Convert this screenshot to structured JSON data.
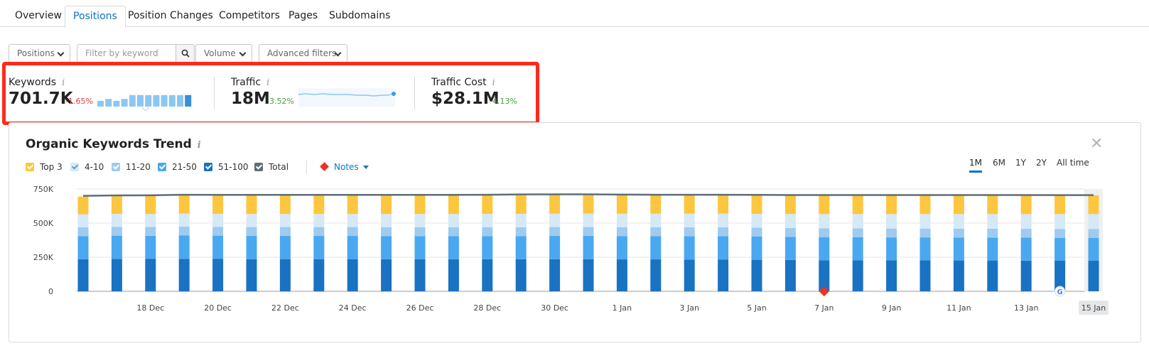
{
  "tabs": [
    {
      "label": "Overview"
    },
    {
      "label": "Positions"
    },
    {
      "label": "Position Changes"
    },
    {
      "label": "Competitors"
    },
    {
      "label": "Pages"
    },
    {
      "label": "Subdomains"
    }
  ],
  "filters": {
    "positions_label": "Positions",
    "keyword_placeholder": "Filter by keyword",
    "volume_label": "Volume",
    "advanced_label": "Advanced filters"
  },
  "metrics": {
    "keywords": {
      "label": "Keywords",
      "value": "701.7K",
      "change": "-1.65%",
      "trend_bars": [
        0.3,
        0.4,
        0.3,
        0.4,
        0.6,
        0.6,
        0.6,
        0.6,
        0.6,
        0.6,
        0.6,
        0.6
      ]
    },
    "traffic": {
      "label": "Traffic",
      "value": "18M",
      "change": "3.52%"
    },
    "traffic_cost": {
      "label": "Traffic Cost",
      "value": "$28.1M",
      "change": "4.13%"
    }
  },
  "panel": {
    "title": "Organic Keywords Trend",
    "legend": [
      {
        "label": "Top 3",
        "color": "#fdc63f"
      },
      {
        "label": "4-10",
        "color": "#d5e9f7"
      },
      {
        "label": "11-20",
        "color": "#9ecbef"
      },
      {
        "label": "21-50",
        "color": "#4aa8f0"
      },
      {
        "label": "51-100",
        "color": "#1a72c2"
      },
      {
        "label": "Total",
        "color": "#5d6e76"
      }
    ],
    "notes_label": "Notes",
    "ranges": [
      "1M",
      "6M",
      "1Y",
      "2Y",
      "All time"
    ],
    "active_range": "1M"
  },
  "chart_data": {
    "type": "bar",
    "stacked": true,
    "yticks": [
      "750K",
      "500K",
      "250K",
      "0"
    ],
    "ylim": [
      0,
      750000
    ],
    "x_tick_labels": [
      "18 Dec",
      "20 Dec",
      "22 Dec",
      "24 Dec",
      "26 Dec",
      "28 Dec",
      "30 Dec",
      "1 Jan",
      "3 Jan",
      "5 Jan",
      "7 Jan",
      "9 Jan",
      "11 Jan",
      "13 Jan",
      "15 Jan"
    ],
    "categories": [
      "16 Dec",
      "17 Dec",
      "18 Dec",
      "19 Dec",
      "20 Dec",
      "21 Dec",
      "22 Dec",
      "23 Dec",
      "24 Dec",
      "25 Dec",
      "26 Dec",
      "27 Dec",
      "28 Dec",
      "29 Dec",
      "30 Dec",
      "31 Dec",
      "1 Jan",
      "2 Jan",
      "3 Jan",
      "4 Jan",
      "5 Jan",
      "6 Jan",
      "7 Jan",
      "8 Jan",
      "9 Jan",
      "10 Jan",
      "11 Jan",
      "12 Jan",
      "13 Jan",
      "14 Jan",
      "15 Jan"
    ],
    "series": [
      {
        "name": "51-100",
        "values": [
          235000,
          238000,
          237000,
          238000,
          237000,
          236000,
          236000,
          236000,
          236000,
          235000,
          235000,
          235000,
          235000,
          235000,
          235000,
          235000,
          234000,
          234000,
          233000,
          232000,
          231000,
          230000,
          228000,
          228000,
          227000,
          227000,
          226000,
          226000,
          225000,
          224000,
          224000
        ]
      },
      {
        "name": "21-50",
        "values": [
          170000,
          170000,
          170000,
          172000,
          171000,
          170000,
          170000,
          170000,
          170000,
          170000,
          170000,
          170000,
          170000,
          170000,
          171000,
          171000,
          171000,
          171000,
          171000,
          172000,
          170000,
          169000,
          168000,
          168000,
          168000,
          168000,
          168000,
          168000,
          168000,
          168000,
          168000
        ]
      },
      {
        "name": "11-20",
        "values": [
          65000,
          65000,
          65000,
          65000,
          65000,
          65000,
          65000,
          65000,
          65000,
          65000,
          65000,
          65000,
          65000,
          65000,
          65000,
          65000,
          65000,
          65000,
          65000,
          65000,
          65000,
          65000,
          65000,
          65000,
          65000,
          65000,
          65000,
          65000,
          65000,
          65000,
          65000
        ]
      },
      {
        "name": "4-10",
        "values": [
          95000,
          95000,
          95000,
          95000,
          95000,
          96000,
          96000,
          96000,
          96000,
          97000,
          97000,
          97000,
          98000,
          98000,
          98000,
          98000,
          99000,
          99000,
          100000,
          100000,
          102000,
          103000,
          105000,
          105000,
          106000,
          106000,
          107000,
          107000,
          108000,
          109000,
          109000
        ]
      },
      {
        "name": "Top 3",
        "values": [
          130000,
          130000,
          132000,
          133000,
          134000,
          135000,
          135000,
          135000,
          135000,
          135000,
          135000,
          135000,
          135000,
          137000,
          137000,
          137000,
          137000,
          137000,
          137000,
          137000,
          137000,
          137000,
          138000,
          138000,
          138000,
          138000,
          138000,
          138000,
          138000,
          138000,
          138000
        ]
      },
      {
        "name": "Total",
        "values": [
          700000,
          703000,
          704000,
          708000,
          707000,
          707000,
          707000,
          707000,
          707000,
          707000,
          707000,
          707000,
          708000,
          710000,
          711000,
          711000,
          709000,
          708000,
          708000,
          708000,
          707000,
          706000,
          706000,
          706000,
          706000,
          706000,
          706000,
          706000,
          706000,
          705000,
          705000
        ]
      }
    ],
    "notes_markers": [
      "7 Jan"
    ],
    "google_markers": [
      "14 Jan"
    ],
    "highlighted_category": "15 Jan"
  }
}
